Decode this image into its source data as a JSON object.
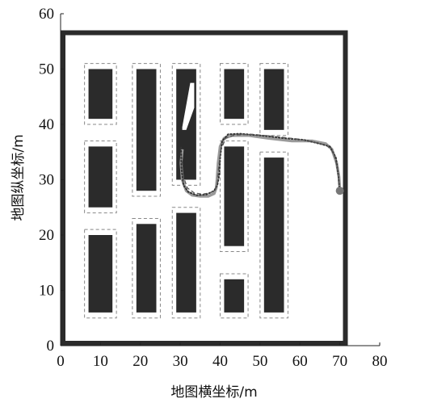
{
  "chart_data": {
    "type": "line",
    "title": "",
    "xlabel": "地图横坐标/m",
    "ylabel": "地图纵坐标/m",
    "xlim": [
      0,
      80
    ],
    "ylim": [
      0,
      60
    ],
    "x_ticks": [
      "0",
      "10",
      "20",
      "30",
      "40",
      "50",
      "60",
      "70",
      "80"
    ],
    "y_ticks": [
      "0",
      "10",
      "20",
      "30",
      "40",
      "50",
      "60"
    ],
    "grid": false,
    "legend": "none",
    "colors": {
      "obstacle": "#2b2b2b",
      "border": "#2b2b2b",
      "safety_margin": "#888888",
      "path_gray": "#9a9a9a",
      "path_dark": "#333333",
      "endpoint": "#777777"
    },
    "map_boundary": {
      "x": [
        0,
        72
      ],
      "y": [
        0,
        57
      ]
    },
    "obstacles": [
      {
        "x": [
          7,
          13
        ],
        "y": [
          41,
          50
        ]
      },
      {
        "x": [
          7,
          13
        ],
        "y": [
          25,
          36
        ]
      },
      {
        "x": [
          7,
          13
        ],
        "y": [
          6,
          20
        ]
      },
      {
        "x": [
          19,
          24
        ],
        "y": [
          28,
          50
        ]
      },
      {
        "x": [
          19,
          24
        ],
        "y": [
          6,
          22
        ]
      },
      {
        "x": [
          29,
          34
        ],
        "y": [
          30,
          50
        ]
      },
      {
        "x": [
          29,
          34
        ],
        "y": [
          6,
          24
        ]
      },
      {
        "x": [
          41,
          46
        ],
        "y": [
          41,
          50
        ]
      },
      {
        "x": [
          41,
          46
        ],
        "y": [
          18,
          36
        ]
      },
      {
        "x": [
          41,
          46
        ],
        "y": [
          6,
          12
        ]
      },
      {
        "x": [
          51,
          56
        ],
        "y": [
          39,
          50
        ]
      },
      {
        "x": [
          51,
          56
        ],
        "y": [
          6,
          34
        ]
      }
    ],
    "slanted_gap": [
      [
        32.5,
        47.5
      ],
      [
        33.5,
        47.5
      ],
      [
        33.5,
        43
      ],
      [
        31.5,
        39
      ],
      [
        30.5,
        39
      ],
      [
        30.5,
        39.5
      ]
    ],
    "safety_margins": [
      {
        "x": [
          6,
          14
        ],
        "y": [
          40,
          51
        ]
      },
      {
        "x": [
          6,
          14
        ],
        "y": [
          24,
          37
        ]
      },
      {
        "x": [
          6,
          14
        ],
        "y": [
          5,
          21
        ]
      },
      {
        "x": [
          18,
          25
        ],
        "y": [
          27,
          51
        ]
      },
      {
        "x": [
          18,
          25
        ],
        "y": [
          5,
          23
        ]
      },
      {
        "x": [
          28,
          35
        ],
        "y": [
          29,
          51
        ]
      },
      {
        "x": [
          28,
          35
        ],
        "y": [
          5,
          25
        ]
      },
      {
        "x": [
          40,
          47
        ],
        "y": [
          40,
          51
        ]
      },
      {
        "x": [
          40,
          47
        ],
        "y": [
          17,
          37
        ]
      },
      {
        "x": [
          40,
          47
        ],
        "y": [
          5,
          13
        ]
      },
      {
        "x": [
          50,
          57
        ],
        "y": [
          38,
          51
        ]
      },
      {
        "x": [
          50,
          57
        ],
        "y": [
          5,
          35
        ]
      }
    ],
    "series": [
      {
        "style": "solid-gray",
        "x": [
          70,
          69.8,
          69.2,
          68,
          66.5,
          63,
          58,
          52,
          47,
          43,
          41,
          40,
          39.5,
          39.2,
          39,
          38.5,
          37,
          35,
          33,
          31.5,
          30.5,
          30.2,
          30.5
        ],
        "y": [
          28,
          30.5,
          33,
          35.5,
          36.5,
          37,
          37,
          37.5,
          38,
          38,
          37.5,
          36,
          33,
          30,
          28.5,
          27.5,
          27,
          27,
          27.2,
          28,
          30,
          33,
          35.5
        ]
      },
      {
        "style": "dotted-dark",
        "x": [
          70,
          69.6,
          69,
          67.5,
          65,
          61,
          56,
          50,
          45,
          42,
          40.5,
          40,
          39.8,
          39.3,
          38.5,
          36.5,
          34,
          32,
          30.8,
          30.3,
          30.2
        ],
        "y": [
          28,
          31,
          34,
          36,
          36.5,
          37.2,
          37.5,
          38,
          38.3,
          38.2,
          37,
          34,
          31,
          29,
          28,
          27.3,
          27.2,
          27.8,
          29,
          32,
          36
        ]
      },
      {
        "style": "dashed-mid",
        "x": [
          70,
          69.4,
          68.5,
          66.8,
          64,
          60,
          54,
          48,
          44,
          41.5,
          40.2,
          39.6,
          39.3,
          38.8,
          37.5,
          35.5,
          33.5,
          31.8,
          30.8,
          30.4
        ],
        "y": [
          28,
          32,
          34.8,
          36.2,
          36.7,
          37.3,
          37.8,
          38.2,
          38.1,
          37.6,
          35.5,
          32,
          29.5,
          28.2,
          27.6,
          27.4,
          27.6,
          28.5,
          30.5,
          34
        ]
      }
    ],
    "endpoint": {
      "x": 70,
      "y": 28
    }
  }
}
